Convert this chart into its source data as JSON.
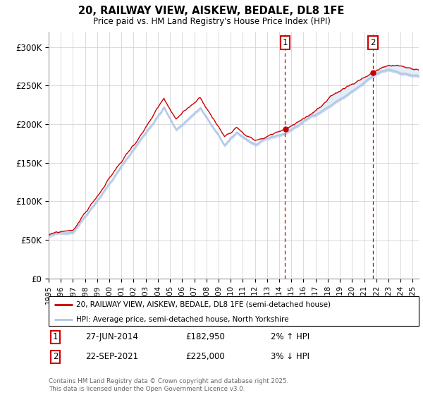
{
  "title": "20, RAILWAY VIEW, AISKEW, BEDALE, DL8 1FE",
  "subtitle": "Price paid vs. HM Land Registry's House Price Index (HPI)",
  "ylim": [
    0,
    320000
  ],
  "yticks": [
    0,
    50000,
    100000,
    150000,
    200000,
    250000,
    300000
  ],
  "ytick_labels": [
    "£0",
    "£50K",
    "£100K",
    "£150K",
    "£200K",
    "£250K",
    "£300K"
  ],
  "xlim_start": 1995.0,
  "xlim_end": 2025.5,
  "purchase1_date": 2014.49,
  "purchase1_price": 182950,
  "purchase2_date": 2021.73,
  "purchase2_price": 225000,
  "hpi_color": "#aec6e8",
  "hpi_fill_color": "#ddeaf7",
  "price_color": "#cc0000",
  "grid_color": "#cccccc",
  "legend_line1": "20, RAILWAY VIEW, AISKEW, BEDALE, DL8 1FE (semi-detached house)",
  "legend_line2": "HPI: Average price, semi-detached house, North Yorkshire",
  "annotation1_date": "27-JUN-2014",
  "annotation1_price": "£182,950",
  "annotation1_hpi": "2% ↑ HPI",
  "annotation2_date": "22-SEP-2021",
  "annotation2_price": "£225,000",
  "annotation2_hpi": "3% ↓ HPI",
  "footer": "Contains HM Land Registry data © Crown copyright and database right 2025.\nThis data is licensed under the Open Government Licence v3.0."
}
